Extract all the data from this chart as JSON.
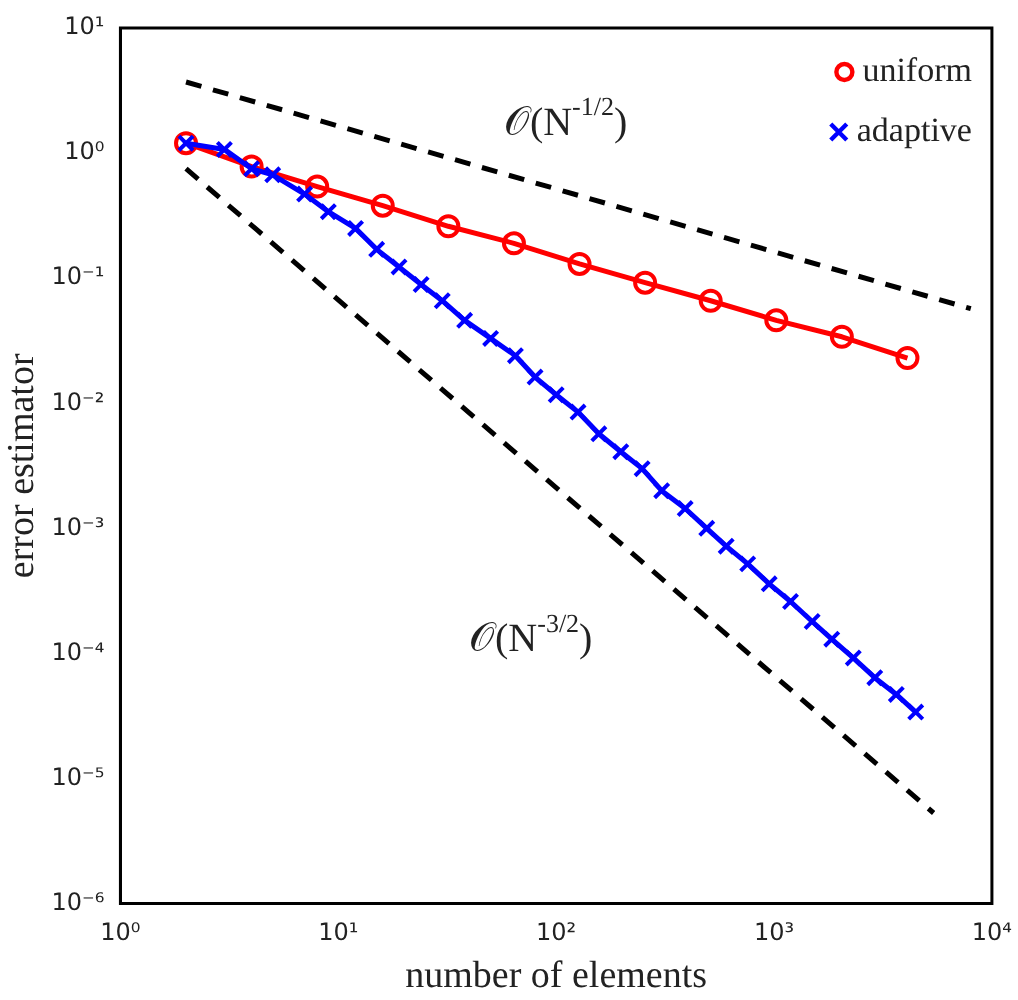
{
  "chart_data": {
    "type": "line",
    "xlabel": "number of elements",
    "ylabel": "error estimator",
    "log": "xy",
    "grid": false,
    "legend": "top right",
    "xlim": [
      1,
      10000
    ],
    "xticks": [
      {
        "value": 1,
        "label": "10⁰"
      },
      {
        "value": 10,
        "label": "10¹"
      },
      {
        "value": 100,
        "label": "10²"
      },
      {
        "value": 1000,
        "label": "10³"
      },
      {
        "value": 10000,
        "label": "10⁴"
      }
    ],
    "ylim": [
      1e-06,
      10
    ],
    "yticks": [
      {
        "value": 1e-06,
        "label": "10⁻⁶"
      },
      {
        "value": 1e-05,
        "label": "10⁻⁵"
      },
      {
        "value": 0.0001,
        "label": "10⁻⁴"
      },
      {
        "value": 0.001,
        "label": "10⁻³"
      },
      {
        "value": 0.01,
        "label": "10⁻²"
      },
      {
        "value": 0.1,
        "label": "10⁻¹"
      },
      {
        "value": 1,
        "label": "10⁰"
      },
      {
        "value": 10,
        "label": "10¹"
      }
    ],
    "series": [
      {
        "name": "uniform",
        "color": "#ff0000",
        "marker": "circle",
        "line_style": "solid",
        "x": [
          2,
          4,
          8,
          16,
          32,
          64,
          128,
          256,
          512,
          1024,
          2048,
          4096
        ],
        "values": [
          1.2,
          0.78,
          0.54,
          0.38,
          0.26,
          0.19,
          0.13,
          0.092,
          0.066,
          0.046,
          0.034,
          0.023
        ]
      },
      {
        "name": "adaptive",
        "color": "#0000ff",
        "marker": "cross",
        "line_style": "solid",
        "x": [
          2,
          3,
          4,
          5,
          7,
          9,
          12,
          15,
          19,
          24,
          30,
          38,
          50,
          65,
          80,
          100,
          126,
          157,
          198,
          248,
          305,
          391,
          491,
          603,
          757,
          950,
          1190,
          1496,
          1840,
          2310,
          2900,
          3640,
          4470
        ],
        "values": [
          1.2,
          1.07,
          0.75,
          0.67,
          0.47,
          0.34,
          0.25,
          0.17,
          0.123,
          0.089,
          0.066,
          0.046,
          0.033,
          0.024,
          0.0162,
          0.0117,
          0.0085,
          0.0057,
          0.0041,
          0.003,
          0.002,
          0.00144,
          0.001,
          0.00072,
          0.00052,
          0.00036,
          0.00026,
          0.00018,
          0.00013,
          9.2e-05,
          6.4e-05,
          4.7e-05,
          3.4e-05
        ]
      },
      {
        "color": "#000000",
        "marker": "none",
        "line_style": "dashed",
        "x": [
          2,
          8000
        ],
        "values": [
          3.7,
          0.057
        ]
      },
      {
        "color": "#000000",
        "marker": "none",
        "line_style": "dashed",
        "x": [
          2,
          5400
        ],
        "values": [
          0.75,
          5.3e-06
        ]
      }
    ],
    "annotations": [
      "𝒪(N$^{-1/2}$)",
      "𝒪(N$^{-3/2}$)"
    ]
  }
}
